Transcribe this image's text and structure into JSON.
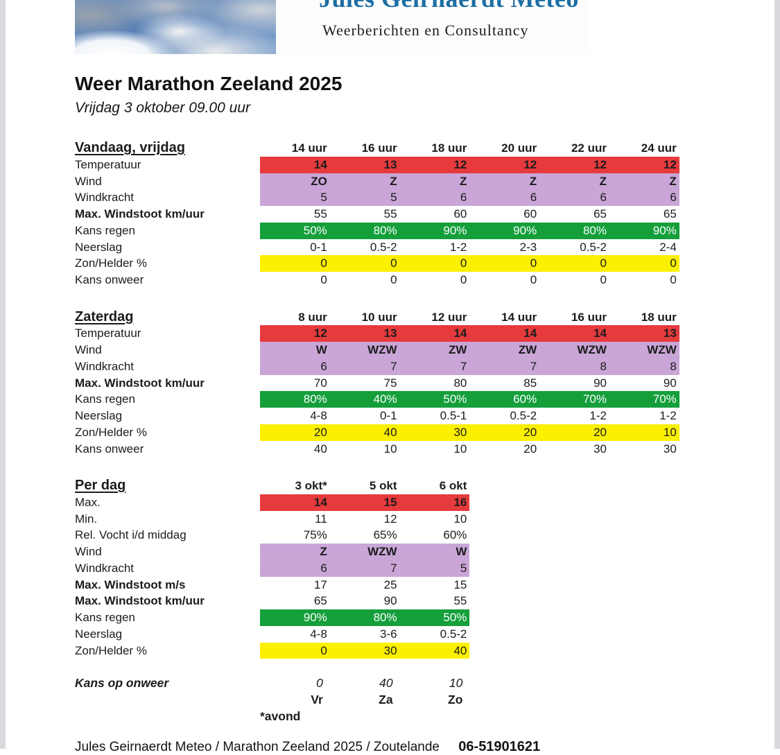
{
  "brand": {
    "name": "Jules Geirnaerdt Meteo",
    "tagline": "Weerberichten en Consultancy"
  },
  "title": "Weer Marathon Zeeland 2025",
  "subtitle": "Vrijdag 3 oktober 09.00 uur",
  "colors": {
    "red": "#e73a3d",
    "purple": "#c9a6d7",
    "green": "#149f3b",
    "yellow": "#fbf000",
    "brand_blue": "#1d6fa5"
  },
  "tables": [
    {
      "section": "Vandaag, vrijdag",
      "columns": [
        "14 uur",
        "16 uur",
        "18 uur",
        "20 uur",
        "22 uur",
        "24 uur"
      ],
      "rows": [
        {
          "label": "Temperatuur",
          "bg": "red",
          "vb": true,
          "values": [
            "14",
            "13",
            "12",
            "12",
            "12",
            "12"
          ]
        },
        {
          "label": "Wind",
          "bg": "purple",
          "vb": true,
          "values": [
            "ZO",
            "Z",
            "Z",
            "Z",
            "Z",
            "Z"
          ]
        },
        {
          "label": "Windkracht",
          "bg": "purple",
          "values": [
            "5",
            "5",
            "6",
            "6",
            "6",
            "6"
          ]
        },
        {
          "label": "Max. Windstoot km/uur",
          "lb": true,
          "bg": "white",
          "values": [
            "55",
            "55",
            "60",
            "60",
            "65",
            "65"
          ]
        },
        {
          "label": "Kans regen",
          "bg": "green",
          "values": [
            "50%",
            "80%",
            "90%",
            "90%",
            "80%",
            "90%"
          ]
        },
        {
          "label": "Neerslag",
          "bg": "white",
          "values": [
            "0-1",
            "0.5-2",
            "1-2",
            "2-3",
            "0.5-2",
            "2-4"
          ]
        },
        {
          "label": "Zon/Helder %",
          "bg": "yellow",
          "values": [
            "0",
            "0",
            "0",
            "0",
            "0",
            "0"
          ]
        },
        {
          "label": "Kans onweer",
          "bg": "white",
          "values": [
            "0",
            "0",
            "0",
            "0",
            "0",
            "0"
          ]
        }
      ]
    },
    {
      "section": "Zaterdag",
      "columns": [
        "8 uur",
        "10 uur",
        "12 uur",
        "14 uur",
        "16 uur",
        "18 uur"
      ],
      "rows": [
        {
          "label": "Temperatuur",
          "bg": "red",
          "vb": true,
          "values": [
            "12",
            "13",
            "14",
            "14",
            "14",
            "13"
          ]
        },
        {
          "label": "Wind",
          "bg": "purple",
          "vb": true,
          "values": [
            "W",
            "WZW",
            "ZW",
            "ZW",
            "WZW",
            "WZW"
          ]
        },
        {
          "label": "Windkracht",
          "bg": "purple",
          "values": [
            "6",
            "7",
            "7",
            "7",
            "8",
            "8"
          ]
        },
        {
          "label": "Max. Windstoot km/uur",
          "lb": true,
          "bg": "white",
          "values": [
            "70",
            "75",
            "80",
            "85",
            "90",
            "90"
          ]
        },
        {
          "label": "Kans regen",
          "bg": "green",
          "values": [
            "80%",
            "40%",
            "50%",
            "60%",
            "70%",
            "70%"
          ]
        },
        {
          "label": "Neerslag",
          "bg": "white",
          "values": [
            "4-8",
            "0-1",
            "0.5-1",
            "0.5-2",
            "1-2",
            "1-2"
          ]
        },
        {
          "label": "Zon/Helder %",
          "bg": "yellow",
          "values": [
            "20",
            "40",
            "30",
            "20",
            "20",
            "10"
          ]
        },
        {
          "label": "Kans onweer",
          "bg": "white",
          "values": [
            "40",
            "10",
            "10",
            "20",
            "30",
            "30"
          ]
        }
      ]
    },
    {
      "section": "Per dag",
      "columns": [
        "3 okt*",
        "5 okt",
        "6 okt"
      ],
      "rows": [
        {
          "label": "Max.",
          "bg": "red",
          "vb": true,
          "values": [
            "14",
            "15",
            "16"
          ]
        },
        {
          "label": "Min.",
          "bg": "white",
          "values": [
            "11",
            "12",
            "10"
          ]
        },
        {
          "label": "Rel. Vocht i/d middag",
          "bg": "white",
          "values": [
            "75%",
            "65%",
            "60%"
          ]
        },
        {
          "label": "Wind",
          "bg": "purple",
          "vb": true,
          "values": [
            "Z",
            "WZW",
            "W"
          ]
        },
        {
          "label": "Windkracht",
          "bg": "purple",
          "values": [
            "6",
            "7",
            "5"
          ]
        },
        {
          "label": "Max. Windstoot m/s",
          "lb": true,
          "bg": "white",
          "values": [
            "17",
            "25",
            "15"
          ]
        },
        {
          "label": "Max. Windstoot km/uur",
          "lb": true,
          "bg": "white",
          "values": [
            "65",
            "90",
            "55"
          ]
        },
        {
          "label": "Kans regen",
          "bg": "green",
          "values": [
            "90%",
            "80%",
            "50%"
          ]
        },
        {
          "label": "Neerslag",
          "bg": "white",
          "values": [
            "4-8",
            "3-6",
            "0.5-2"
          ]
        },
        {
          "label": "Zon/Helder %",
          "bg": "yellow",
          "values": [
            "0",
            "30",
            "40"
          ]
        }
      ]
    }
  ],
  "summary": {
    "label": "Kans op onweer",
    "values": [
      "0",
      "40",
      "10"
    ],
    "days": [
      "Vr",
      "Za",
      "Zo"
    ],
    "note": "*avond"
  },
  "footer": {
    "text": "Jules Geirnaerdt Meteo / Marathon Zeeland 2025 / Zoutelande",
    "phone": "06-51901621"
  }
}
